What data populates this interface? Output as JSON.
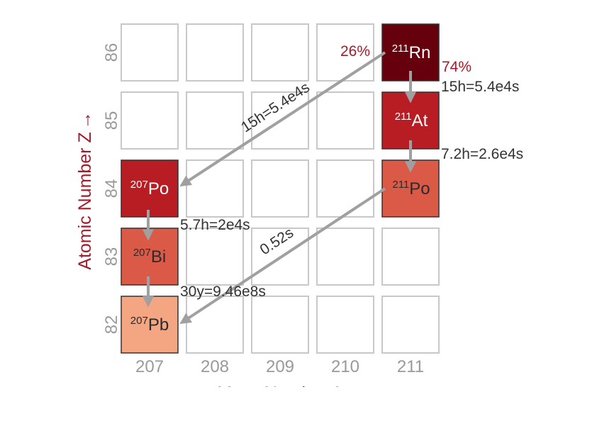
{
  "axes": {
    "x_label": "Mass Number  A",
    "y_label": "Atomic Number  Z",
    "y_arrow": "→",
    "x_ticks": [
      "207",
      "208",
      "209",
      "210",
      "211"
    ],
    "y_ticks": [
      "82",
      "83",
      "84",
      "85",
      "86"
    ]
  },
  "nuclides": [
    {
      "mass": "211",
      "symbol": "Rn",
      "color": "#67000d",
      "text_color": "#ffffff"
    },
    {
      "mass": "211",
      "symbol": "At",
      "color": "#b91d24",
      "text_color": "#ffffff"
    },
    {
      "mass": "211",
      "symbol": "Po",
      "color": "#da5a47",
      "text_color": "#2b2b2b"
    },
    {
      "mass": "207",
      "symbol": "Po",
      "color": "#b91d24",
      "text_color": "#ffffff"
    },
    {
      "mass": "207",
      "symbol": "Bi",
      "color": "#da5a47",
      "text_color": "#2b2b2b"
    },
    {
      "mass": "207",
      "symbol": "Pb",
      "color": "#f4a582",
      "text_color": "#2b2b2b"
    }
  ],
  "decays": [
    {
      "label": "15h=5.4e4s",
      "mode": "alpha"
    },
    {
      "label": "15h=5.4e4s",
      "mode": "beta"
    },
    {
      "label": "7.2h=2.6e4s",
      "mode": "beta"
    },
    {
      "label": "0.52s",
      "mode": "alpha"
    },
    {
      "label": "5.7h=2e4s",
      "mode": "beta"
    },
    {
      "label": "30y=9.46e8s",
      "mode": "beta"
    }
  ],
  "branching": {
    "alpha": "26%",
    "beta": "74%"
  },
  "colors": {
    "grid_stroke": "#c8c8c8",
    "arrow": "#a0a0a0",
    "accent": "#a31b2b"
  }
}
